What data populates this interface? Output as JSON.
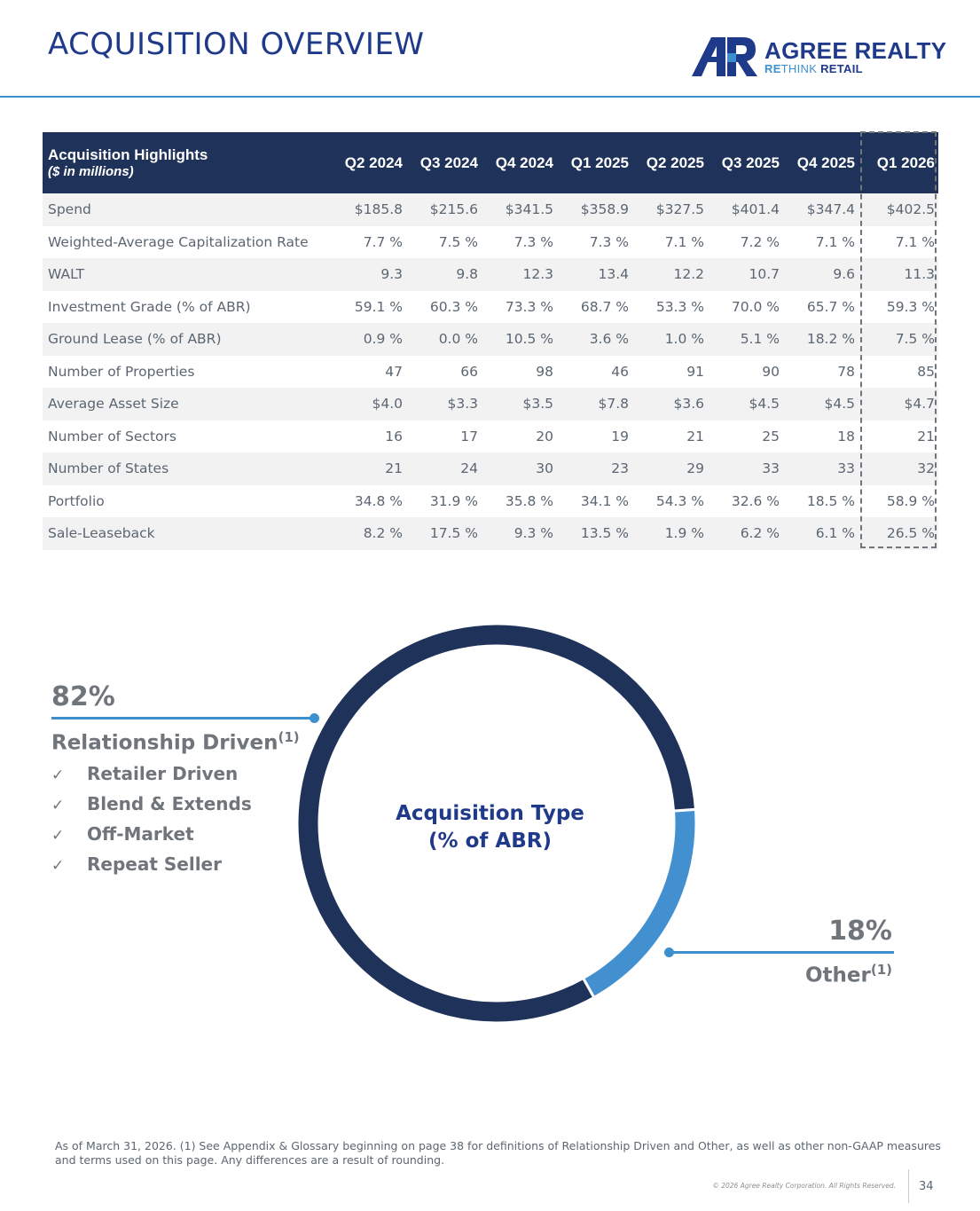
{
  "header": {
    "title": "ACQUISITION OVERVIEW",
    "logo_name": "AGREE REALTY",
    "logo_tag_re": "RE",
    "logo_tag_think": "THINK",
    "logo_tag_retail": "RETAIL"
  },
  "table": {
    "header_label": "Acquisition Highlights",
    "header_sub": "($ in millions)",
    "columns": [
      "Q2 2024",
      "Q3 2024",
      "Q4 2024",
      "Q1 2025",
      "Q2 2025",
      "Q3 2025",
      "Q4 2025",
      "Q1 2026"
    ],
    "rows": [
      {
        "label": "Spend",
        "values": [
          "$185.8",
          "$215.6",
          "$341.5",
          "$358.9",
          "$327.5",
          "$401.4",
          "$347.4",
          "$402.5"
        ]
      },
      {
        "label": "Weighted-Average Capitalization Rate",
        "values": [
          "7.7 %",
          "7.5 %",
          "7.3 %",
          "7.3 %",
          "7.1 %",
          "7.2 %",
          "7.1 %",
          "7.1 %"
        ]
      },
      {
        "label": "WALT",
        "values": [
          "9.3",
          "9.8",
          "12.3",
          "13.4",
          "12.2",
          "10.7",
          "9.6",
          "11.3"
        ]
      },
      {
        "label": "Investment Grade (% of ABR)",
        "values": [
          "59.1 %",
          "60.3 %",
          "73.3 %",
          "68.7 %",
          "53.3 %",
          "70.0 %",
          "65.7 %",
          "59.3 %"
        ]
      },
      {
        "label": "Ground Lease (% of ABR)",
        "values": [
          "0.9 %",
          "0.0 %",
          "10.5 %",
          "3.6 %",
          "1.0 %",
          "5.1 %",
          "18.2 %",
          "7.5 %"
        ]
      },
      {
        "label": "Number of Properties",
        "values": [
          "47",
          "66",
          "98",
          "46",
          "91",
          "90",
          "78",
          "85"
        ]
      },
      {
        "label": "Average Asset Size",
        "values": [
          "$4.0",
          "$3.3",
          "$3.5",
          "$7.8",
          "$3.6",
          "$4.5",
          "$4.5",
          "$4.7"
        ]
      },
      {
        "label": "Number of Sectors",
        "values": [
          "16",
          "17",
          "20",
          "19",
          "21",
          "25",
          "18",
          "21"
        ]
      },
      {
        "label": "Number of States",
        "values": [
          "21",
          "24",
          "30",
          "23",
          "29",
          "33",
          "33",
          "32"
        ]
      },
      {
        "label": "Portfolio",
        "values": [
          "34.8 %",
          "31.9 %",
          "35.8 %",
          "34.1 %",
          "54.3 %",
          "32.6 %",
          "18.5 %",
          "58.9 %"
        ]
      },
      {
        "label": "Sale-Leaseback",
        "values": [
          "8.2 %",
          "17.5 %",
          "9.3 %",
          "13.5 %",
          "1.9 %",
          "6.2 %",
          "6.1 %",
          "26.5 %"
        ]
      }
    ]
  },
  "left_callout": {
    "percent": "82%",
    "title": "Relationship Driven",
    "footnote_mark": "(1)",
    "check_glyph": "✓",
    "bullets": [
      "Retailer Driven",
      "Blend & Extends",
      "Off-Market",
      "Repeat Seller"
    ]
  },
  "right_callout": {
    "percent": "18%",
    "title": "Other",
    "footnote_mark": "(1)"
  },
  "chart_data": {
    "type": "pie",
    "title": "Acquisition Type",
    "subtitle": "(% of ABR)",
    "categories": [
      "Relationship Driven",
      "Other"
    ],
    "values": [
      82,
      18
    ],
    "colors": [
      "#1f3259",
      "#4390d0"
    ]
  },
  "footer": {
    "note": "As of March 31, 2026. (1) See Appendix & Glossary beginning on page 38 for definitions of Relationship Driven and Other, as well as other non-GAAP measures and terms used on this page. Any differences are a result of rounding.",
    "copyright": "© 2026 Agree Realty Corporation. All Rights Reserved.",
    "page_number": "34"
  }
}
